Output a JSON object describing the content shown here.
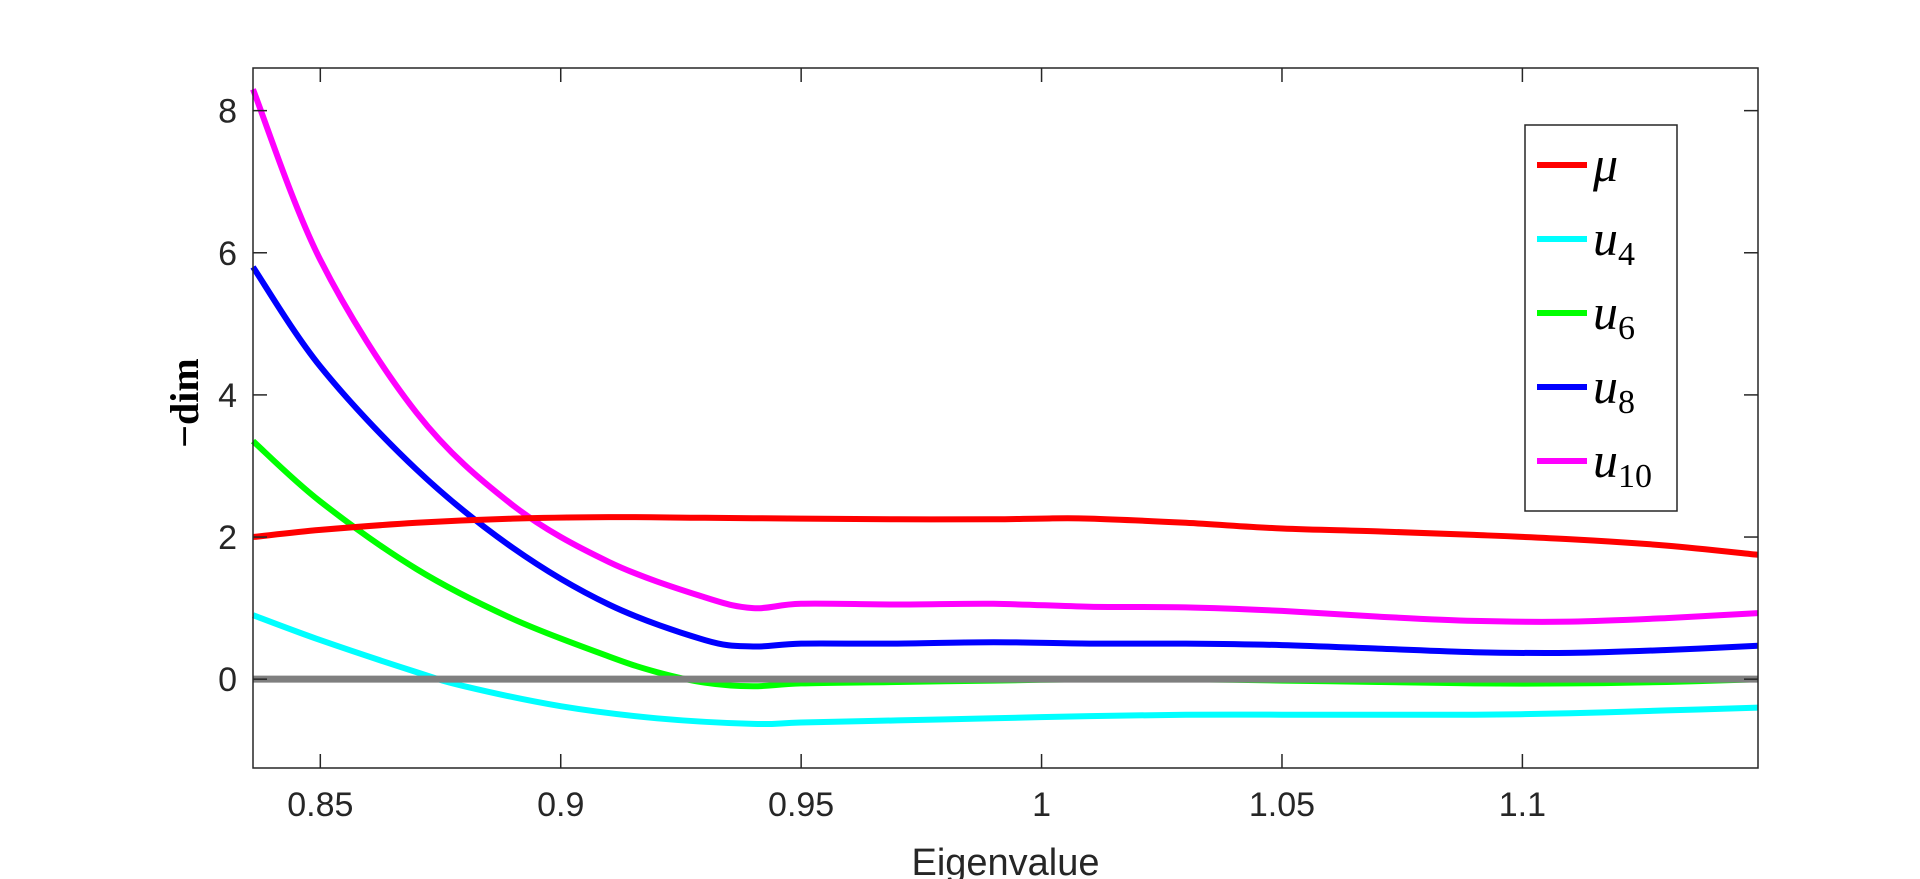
{
  "chart_data": {
    "type": "line",
    "xlabel": "Eigenvalue",
    "ylabel": "−dim",
    "xlim": [
      0.836,
      1.149
    ],
    "ylim": [
      -1.25,
      8.6
    ],
    "xticks": [
      0.85,
      0.9,
      0.95,
      1,
      1.05,
      1.1
    ],
    "xtick_labels": [
      "0.85",
      "0.9",
      "0.95",
      "1",
      "1.05",
      "1.1"
    ],
    "yticks": [
      0,
      2,
      4,
      6,
      8
    ],
    "ytick_labels": [
      "0",
      "2",
      "4",
      "6",
      "8"
    ],
    "grid": false,
    "legend_position": "top-right",
    "series": [
      {
        "name": "μ",
        "sub": "",
        "color": "#ff0000",
        "x": [
          0.836,
          0.85,
          0.87,
          0.89,
          0.91,
          0.93,
          0.95,
          0.97,
          0.99,
          1.0,
          1.01,
          1.03,
          1.05,
          1.07,
          1.09,
          1.11,
          1.13,
          1.149
        ],
        "y": [
          2.0,
          2.1,
          2.2,
          2.26,
          2.28,
          2.27,
          2.26,
          2.25,
          2.25,
          2.26,
          2.26,
          2.2,
          2.12,
          2.08,
          2.03,
          1.97,
          1.88,
          1.75
        ]
      },
      {
        "name": "u",
        "sub": "4",
        "color": "#00ffff",
        "x": [
          0.836,
          0.85,
          0.87,
          0.88,
          0.9,
          0.92,
          0.94,
          0.95,
          0.97,
          0.99,
          1.01,
          1.03,
          1.05,
          1.07,
          1.09,
          1.11,
          1.13,
          1.149
        ],
        "y": [
          0.9,
          0.55,
          0.1,
          -0.1,
          -0.38,
          -0.55,
          -0.63,
          -0.61,
          -0.58,
          -0.55,
          -0.52,
          -0.5,
          -0.5,
          -0.5,
          -0.5,
          -0.48,
          -0.44,
          -0.4
        ]
      },
      {
        "name": "u",
        "sub": "6",
        "color": "#00ff00",
        "x": [
          0.836,
          0.85,
          0.87,
          0.89,
          0.91,
          0.92,
          0.93,
          0.94,
          0.95,
          0.97,
          0.99,
          1.01,
          1.03,
          1.05,
          1.07,
          1.09,
          1.11,
          1.13,
          1.149
        ],
        "y": [
          3.35,
          2.5,
          1.55,
          0.85,
          0.32,
          0.1,
          -0.05,
          -0.1,
          -0.06,
          -0.04,
          -0.02,
          0.0,
          0.0,
          -0.02,
          -0.04,
          -0.06,
          -0.06,
          -0.04,
          0.0
        ]
      },
      {
        "name": "u",
        "sub": "8",
        "color": "#0000ff",
        "x": [
          0.836,
          0.85,
          0.87,
          0.89,
          0.91,
          0.93,
          0.94,
          0.95,
          0.97,
          0.99,
          1.01,
          1.03,
          1.05,
          1.07,
          1.09,
          1.11,
          1.13,
          1.149
        ],
        "y": [
          5.8,
          4.4,
          2.95,
          1.85,
          1.05,
          0.55,
          0.46,
          0.5,
          0.5,
          0.52,
          0.5,
          0.5,
          0.48,
          0.43,
          0.38,
          0.37,
          0.41,
          0.47
        ]
      },
      {
        "name": "u",
        "sub": "10",
        "color": "#ff00ff",
        "x": [
          0.836,
          0.85,
          0.87,
          0.89,
          0.91,
          0.93,
          0.94,
          0.95,
          0.97,
          0.99,
          1.01,
          1.03,
          1.05,
          1.07,
          1.09,
          1.11,
          1.13,
          1.149
        ],
        "y": [
          8.3,
          5.9,
          3.75,
          2.45,
          1.65,
          1.15,
          1.0,
          1.06,
          1.05,
          1.06,
          1.02,
          1.01,
          0.96,
          0.88,
          0.82,
          0.81,
          0.86,
          0.93
        ]
      },
      {
        "name": "",
        "sub": "",
        "color": "#7f7f7f",
        "reference": true,
        "x": [
          0.836,
          1.149
        ],
        "y": [
          0,
          0
        ]
      }
    ]
  }
}
